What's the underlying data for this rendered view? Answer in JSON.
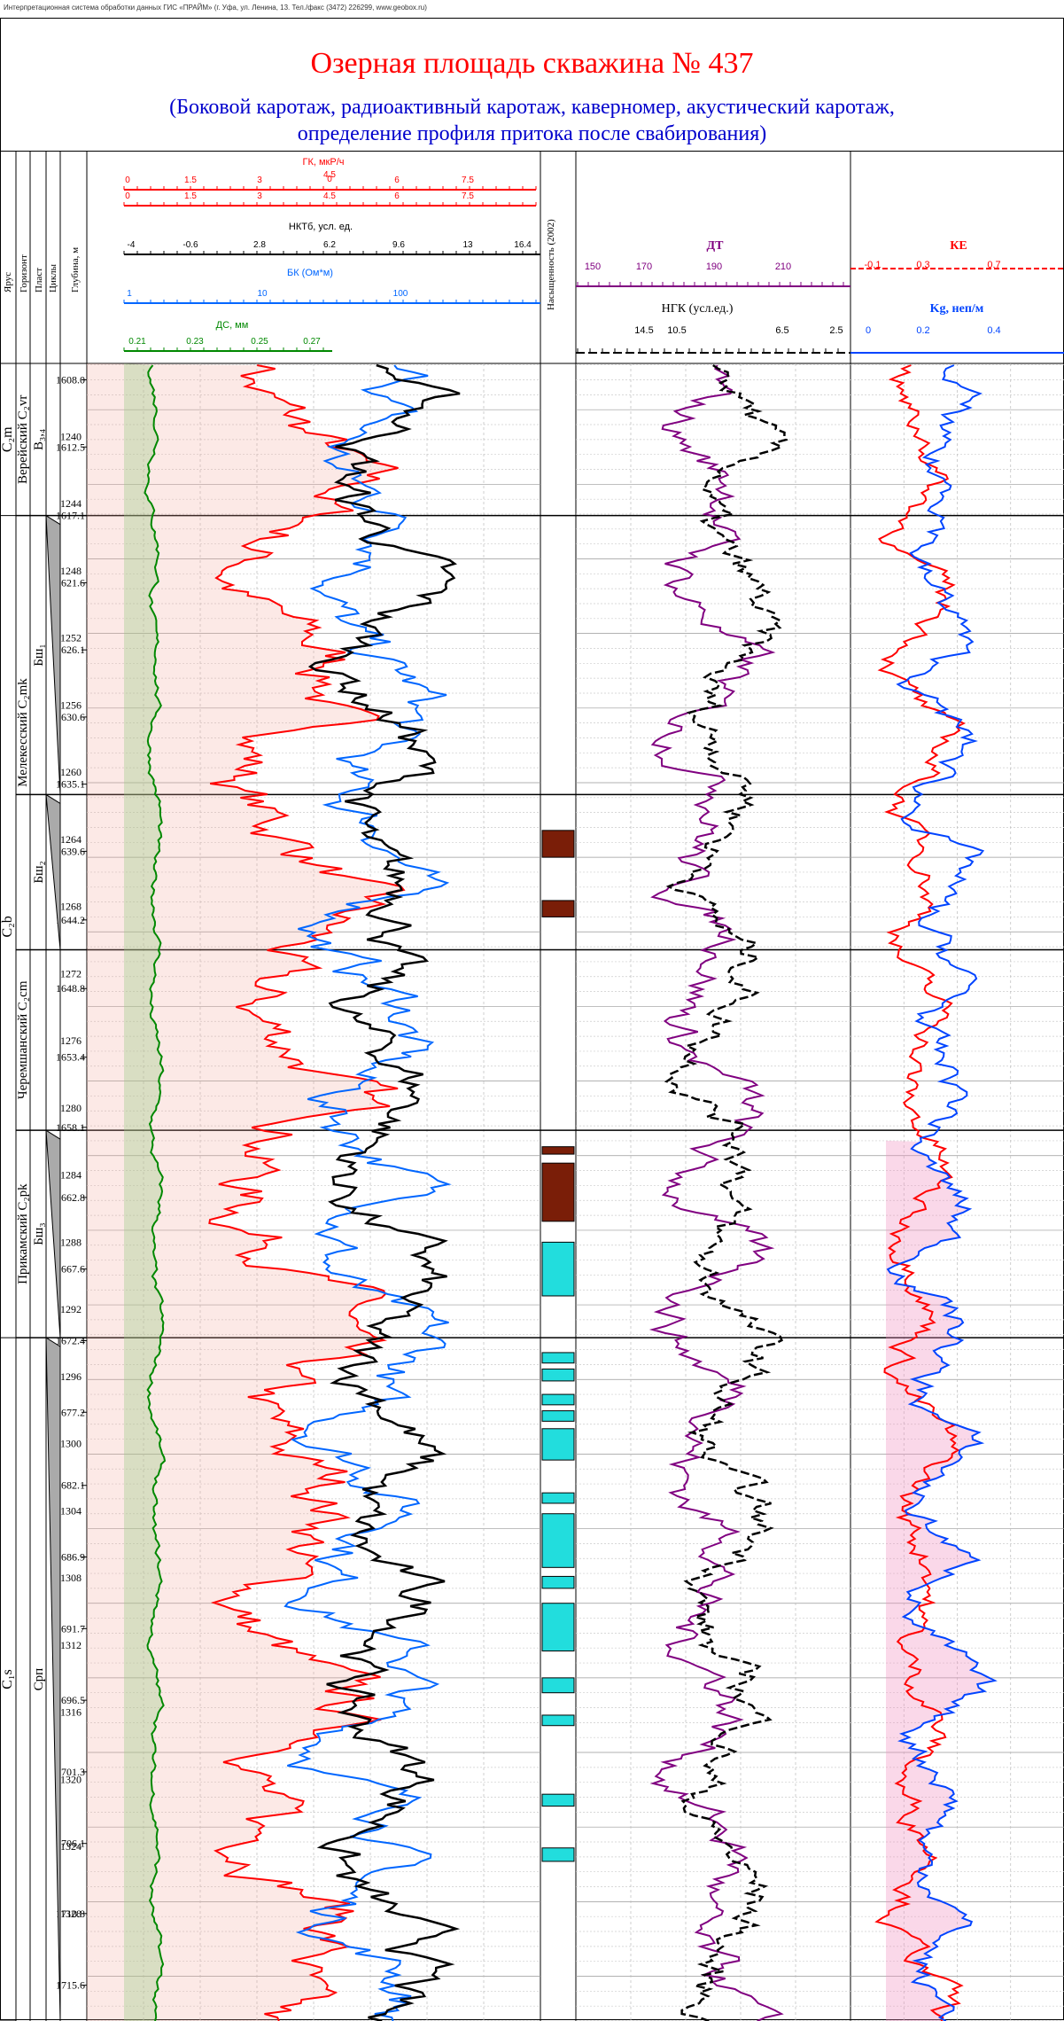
{
  "header_note": "Интерпретационная система обработки данных ГИС «ПРАЙМ» (г. Уфа, ул. Ленина, 13. Тел./факс (3472) 226299, www.geobox.ru)",
  "title": "Озерная площадь скважина № 437",
  "subtitle_1": "(Боковой каротаж, радиоактивный каротаж, каверномер, акустический каротаж,",
  "subtitle_2": "определение профиля притока после свабирования)",
  "colors": {
    "title": "#ff0000",
    "subtitle": "#0000cc",
    "gk": "#ff0000",
    "bk": "#0066ff",
    "ds": "#008800",
    "nkt": "#000000",
    "dt": "#800080",
    "ke": "#ff0000",
    "kg": "#0044ff",
    "fill_red": "#f4a89a",
    "fill_blue": "#9cc8ee",
    "fill_yellow": "#f7f0a8",
    "fill_pink": "#f090c0",
    "fill_cyan": "#22dddd",
    "fill_green": "#7cd67c",
    "sat_brown": "#7a1e08"
  },
  "column_headers": {
    "yarus": "Ярус",
    "gorizont": "Горизонт",
    "plast": "Пласт",
    "cikly": "Циклы",
    "depth": "Глубина, м",
    "saturation": "Насыщенность (2002)"
  },
  "chart_data": {
    "type": "line",
    "title": "Озерная площадь скважина № 437",
    "depth_range_m": [
      1606.9,
      1718.0
    ],
    "depth_ticks_right": [
      1608.0,
      1612.5,
      1617.1,
      1621.6,
      1626.1,
      1630.6,
      1635.1,
      1639.6,
      1644.2,
      1648.8,
      1653.4,
      1658.1,
      1662.8,
      1667.6,
      1672.4,
      1677.2,
      1682.1,
      1686.9,
      1691.7,
      1696.5,
      1701.3,
      1706.1,
      1710.8,
      1715.6
    ],
    "depth_ticks_left": [
      1240,
      1244,
      1248,
      1252,
      1256,
      1260,
      1264,
      1268,
      1272,
      1276,
      1280,
      1284,
      1288,
      1292,
      1296,
      1300,
      1304,
      1308,
      1312,
      1316,
      1320,
      1324,
      1328
    ],
    "scales": {
      "gk": {
        "label": "ГК, мкР/ч",
        "ticks": [
          "0",
          "1.5",
          "3",
          "4.5",
          "6",
          "7.5"
        ],
        "ticks_top": [
          "4.5"
        ]
      },
      "nkt": {
        "label": "НКТб, усл. ед.",
        "ticks": [
          "-4",
          "-0.6",
          "2.8",
          "6.2",
          "9.6",
          "13",
          "16.4"
        ]
      },
      "bk": {
        "label": "БК (Ом*м)",
        "ticks": [
          "1",
          "10",
          "100"
        ],
        "scale": "log"
      },
      "ds": {
        "label": "ДС, мм",
        "ticks": [
          "0.21",
          "0.23",
          "0.25",
          "0.27"
        ]
      },
      "dt": {
        "label": "ДТ",
        "ticks": [
          "150",
          "170",
          "190",
          "210"
        ]
      },
      "ngk": {
        "label": "НГК (усл.ед.)",
        "ticks": [
          "14.5",
          "10.5",
          "6.5",
          "2.5"
        ]
      },
      "ke": {
        "label": "КЕ",
        "ticks": [
          "-0.1",
          "0.3",
          "0.7"
        ]
      },
      "kg": {
        "label": "Kg, неп/м",
        "ticks": [
          "0",
          "0.2",
          "0.4"
        ]
      }
    },
    "formations": [
      {
        "label": "C₂m",
        "top": 1606.9,
        "bottom": 1617.1
      },
      {
        "label": "C₂b",
        "top": 1617.1,
        "bottom": 1672.2
      },
      {
        "label": "C₁s",
        "top": 1672.2,
        "bottom": 1718.0
      }
    ],
    "horizons": [
      {
        "label": "Верейский C₂vr",
        "top": 1606.9,
        "bottom": 1617.1
      },
      {
        "label": "Мелекесский C₂mk",
        "top": 1617.1,
        "bottom": 1646.2
      },
      {
        "label": "Черемшанский C₂cm",
        "top": 1646.2,
        "bottom": 1658.3
      },
      {
        "label": "Прикамский C₂pk",
        "top": 1658.3,
        "bottom": 1672.2
      },
      {
        "label": "",
        "top": 1672.2,
        "bottom": 1718.0
      }
    ],
    "layers": [
      {
        "label": "B₃,₄",
        "top": 1606.9,
        "bottom": 1617.1
      },
      {
        "label": "Бш₁",
        "top": 1617.1,
        "bottom": 1635.8
      },
      {
        "label": "Бш₂",
        "top": 1635.8,
        "bottom": 1646.2
      },
      {
        "label": "",
        "top": 1646.2,
        "bottom": 1658.3
      },
      {
        "label": "Бш₃",
        "top": 1658.3,
        "bottom": 1672.2
      },
      {
        "label": "Срп",
        "top": 1672.2,
        "bottom": 1718.0
      }
    ],
    "saturation_brown": [
      [
        1638.2,
        1640.0
      ],
      [
        1642.9,
        1644.0
      ],
      [
        1659.4,
        1659.9
      ],
      [
        1660.5,
        1664.4
      ]
    ],
    "saturation_cyan": [
      [
        1665.8,
        1669.4
      ],
      [
        1673.2,
        1673.9
      ],
      [
        1674.3,
        1675.1
      ],
      [
        1676.0,
        1676.7
      ],
      [
        1677.1,
        1677.8
      ],
      [
        1678.3,
        1680.4
      ],
      [
        1682.6,
        1683.3
      ],
      [
        1684.0,
        1687.6
      ],
      [
        1688.2,
        1689.0
      ],
      [
        1690.0,
        1693.2
      ],
      [
        1695.0,
        1696.0
      ],
      [
        1697.5,
        1698.2
      ],
      [
        1702.8,
        1703.6
      ],
      [
        1706.4,
        1707.3
      ]
    ]
  }
}
